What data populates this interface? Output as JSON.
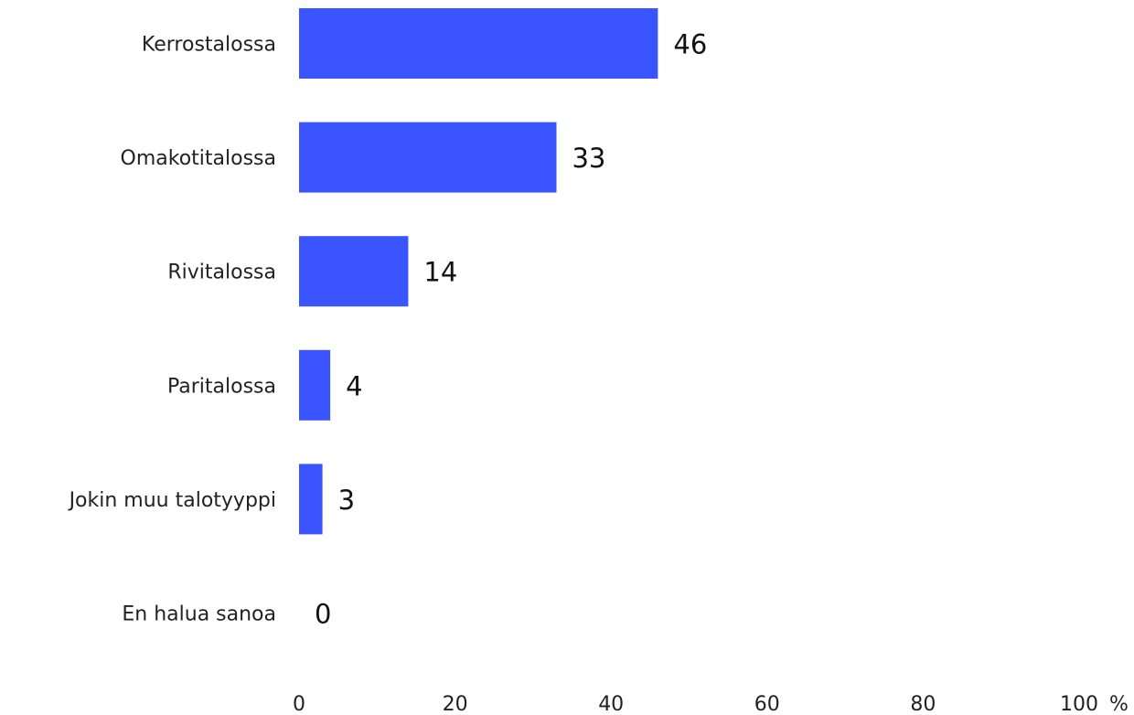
{
  "chart_data": {
    "type": "bar",
    "orientation": "horizontal",
    "categories": [
      "Kerrostalossa",
      "Omakotitalossa",
      "Rivitalossa",
      "Paritalossa",
      "Jokin muu talotyyppi",
      "En halua sanoa"
    ],
    "values": [
      46,
      33,
      14,
      4,
      3,
      0
    ],
    "value_labels": [
      "46",
      "33",
      "14",
      "4",
      "3",
      "0"
    ],
    "title": "",
    "xlabel": "",
    "ylabel": "",
    "xlim": [
      0,
      100
    ],
    "x_ticks": [
      0,
      20,
      40,
      60,
      80,
      100
    ],
    "x_tick_labels": [
      "0",
      "20",
      "40",
      "60",
      "80",
      "100"
    ],
    "x_unit": "%",
    "grid": false,
    "legend": "none",
    "bar_color": "#3a55ff"
  }
}
